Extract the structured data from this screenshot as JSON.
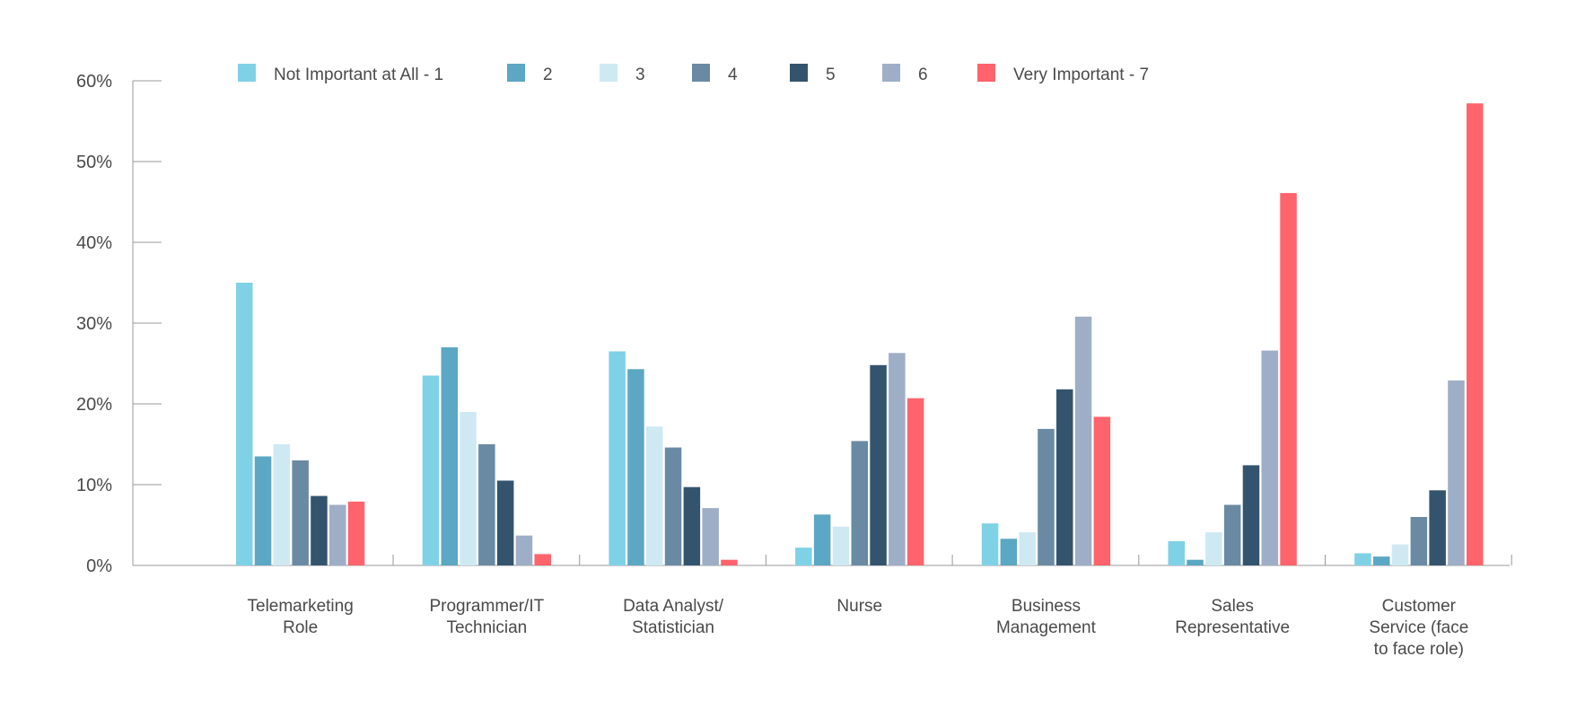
{
  "chart_data": {
    "type": "bar",
    "categories": [
      [
        "Telemarketing",
        "Role"
      ],
      [
        "Programmer/IT",
        "Technician"
      ],
      [
        "Data Analyst/",
        "Statistician"
      ],
      [
        "Nurse"
      ],
      [
        "Business",
        "Management"
      ],
      [
        "Sales",
        "Representative"
      ],
      [
        "Customer",
        "Service (face",
        "to face role)"
      ]
    ],
    "series": [
      {
        "name": "Not Important at All - 1",
        "color": "#7fd1e6",
        "values": [
          35,
          23.5,
          26.5,
          2.2,
          5.2,
          3,
          1.5
        ]
      },
      {
        "name": "2",
        "color": "#5ca7c3",
        "values": [
          13.5,
          27,
          24.3,
          6.3,
          3.3,
          0.7,
          1.1
        ]
      },
      {
        "name": "3",
        "color": "#cfe9f3",
        "values": [
          15,
          19,
          17.2,
          4.8,
          4.1,
          4.1,
          2.6
        ]
      },
      {
        "name": "4",
        "color": "#6a8aa3",
        "values": [
          13,
          15,
          14.6,
          15.4,
          16.9,
          7.5,
          6
        ]
      },
      {
        "name": "5",
        "color": "#34546d",
        "values": [
          8.6,
          10.5,
          9.7,
          24.8,
          21.8,
          12.4,
          9.3
        ]
      },
      {
        "name": "6",
        "color": "#9eaec6",
        "values": [
          7.5,
          3.7,
          7.1,
          26.3,
          30.8,
          26.6,
          22.9
        ]
      },
      {
        "name": "Very Important - 7",
        "color": "#ff636b",
        "values": [
          7.9,
          1.4,
          0.7,
          20.7,
          18.4,
          46.1,
          57.2
        ]
      }
    ],
    "yticks": [
      "0%",
      "10%",
      "20%",
      "30%",
      "40%",
      "50%",
      "60%"
    ],
    "ylim": [
      0,
      60
    ],
    "axis_color": "#9a9a9a",
    "legend_position": "top",
    "grid": false
  }
}
